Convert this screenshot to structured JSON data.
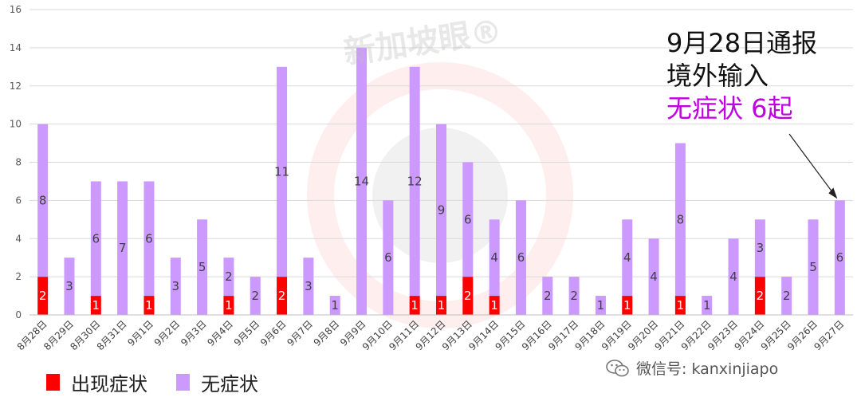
{
  "chart_data": {
    "type": "bar",
    "stacked": true,
    "categories": [
      "8月28日",
      "8月29日",
      "8月30日",
      "8月31日",
      "9月1日",
      "9月2日",
      "9月3日",
      "9月4日",
      "9月5日",
      "9月6日",
      "9月7日",
      "9月8日",
      "9月9日",
      "9月10日",
      "9月11日",
      "9月12日",
      "9月13日",
      "9月14日",
      "9月15日",
      "9月16日",
      "9月17日",
      "9月18日",
      "9月19日",
      "9月20日",
      "9月21日",
      "9月22日",
      "9月23日",
      "9月24日",
      "9月25日",
      "9月26日",
      "9月27日"
    ],
    "series": [
      {
        "name": "出现症状",
        "color": "#ff0000",
        "values": [
          2,
          0,
          1,
          0,
          1,
          0,
          0,
          1,
          0,
          2,
          0,
          0,
          0,
          0,
          1,
          1,
          2,
          1,
          0,
          0,
          0,
          0,
          1,
          0,
          1,
          0,
          0,
          2,
          0,
          0,
          0
        ]
      },
      {
        "name": "无症状",
        "color": "#cc99ff",
        "values": [
          8,
          3,
          6,
          7,
          6,
          3,
          5,
          2,
          2,
          11,
          3,
          1,
          14,
          6,
          12,
          9,
          6,
          4,
          6,
          2,
          2,
          1,
          4,
          4,
          8,
          1,
          4,
          3,
          2,
          5,
          6
        ]
      }
    ],
    "ylim": [
      0,
      16
    ],
    "yticks": [
      0,
      2,
      4,
      6,
      8,
      10,
      12,
      14,
      16
    ],
    "grid": true,
    "legend": "bottom-left"
  },
  "annotation": {
    "line1": "9月28日通报",
    "line2": "境外输入",
    "line3": "无症状 6起"
  },
  "watermark": "新加坡眼®",
  "credit": "微信号: kanxinjiapo"
}
